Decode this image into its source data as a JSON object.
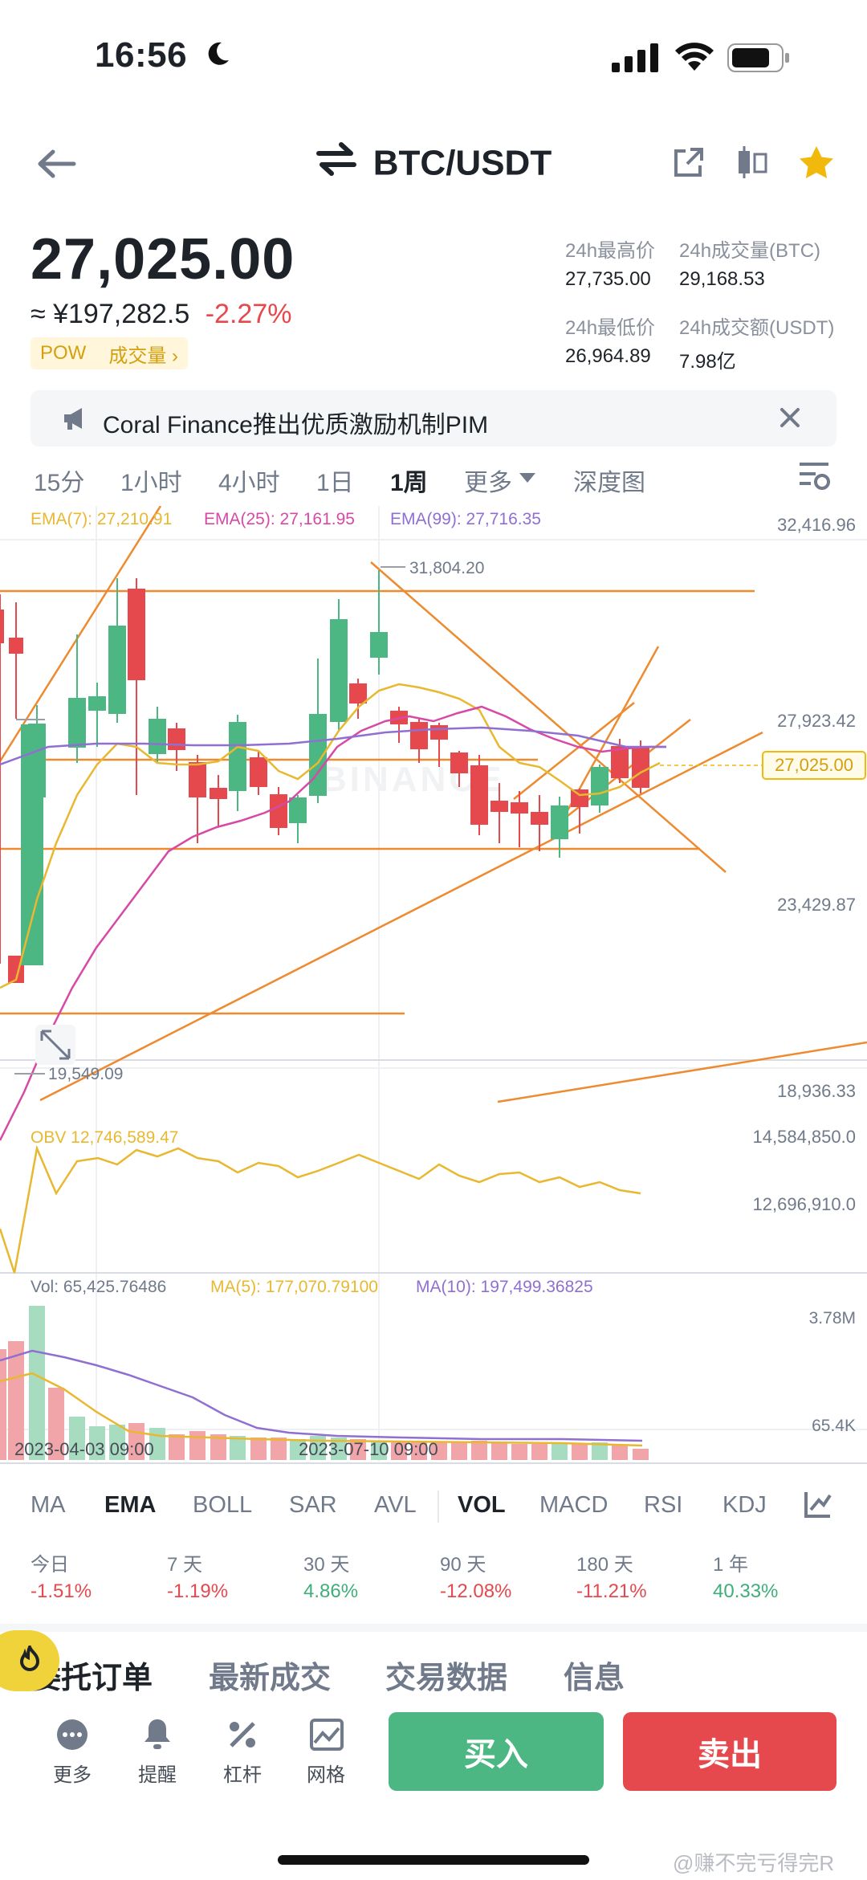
{
  "status_bar": {
    "time": "16:56"
  },
  "header": {
    "pair": "BTC/USDT"
  },
  "ticker": {
    "price": "27,025.00",
    "cny": "≈ ¥197,282.5",
    "change": "-2.27%",
    "badge_tag": "POW",
    "badge_link": "成交量 ›",
    "high_label": "24h最高价",
    "high_value": "27,735.00",
    "vol_btc_label": "24h成交量(BTC)",
    "vol_btc_value": "29,168.53",
    "low_label": "24h最低价",
    "low_value": "26,964.89",
    "vol_usdt_label": "24h成交额(USDT)",
    "vol_usdt_value": "7.98亿"
  },
  "notice": {
    "text": "Coral Finance推出优质激励机制PIM"
  },
  "timeframes": [
    "15分",
    "1小时",
    "4小时",
    "1日",
    "1周",
    "更多",
    "深度图"
  ],
  "active_timeframe": "1周",
  "main_chart": {
    "ema7_label": "EMA(7): 27,210.91",
    "ema25_label": "EMA(25): 27,161.95",
    "ema99_label": "EMA(99): 27,716.35",
    "axis": [
      "32,416.96",
      "27,923.42",
      "23,429.87",
      "18,936.33"
    ],
    "current_price": "27,025.00",
    "high_marker": "31,804.20",
    "low_marker": "19,549.09",
    "watermark": "BINANCE"
  },
  "obv": {
    "label": "OBV 12,746,589.47",
    "axis_top": "14,584,850.0",
    "axis_mid": "12,696,910.0"
  },
  "volume": {
    "vol_label": "Vol: 65,425.76486",
    "ma5_label": "MA(5): 177,070.79100",
    "ma10_label": "MA(10): 197,499.36825",
    "axis_top": "3.78M",
    "axis_bottom": "65.4K",
    "date1": "2023-04-03 09:00",
    "date2": "2023-07-10 09:00"
  },
  "indicators": [
    "MA",
    "EMA",
    "BOLL",
    "SAR",
    "AVL",
    "VOL",
    "MACD",
    "RSI",
    "KDJ"
  ],
  "performance": [
    {
      "label": "今日",
      "value": "-1.51%",
      "dir": "down"
    },
    {
      "label": "7 天",
      "value": "-1.19%",
      "dir": "down"
    },
    {
      "label": "30 天",
      "value": "4.86%",
      "dir": "up"
    },
    {
      "label": "90 天",
      "value": "-12.08%",
      "dir": "down"
    },
    {
      "label": "180 天",
      "value": "-11.21%",
      "dir": "down"
    },
    {
      "label": "1 年",
      "value": "40.33%",
      "dir": "up"
    }
  ],
  "bottom_tabs": [
    "委托订单",
    "最新成交",
    "交易数据",
    "信息"
  ],
  "bottom_nav": [
    "更多",
    "提醒",
    "杠杆",
    "网格"
  ],
  "buy_label": "买入",
  "sell_label": "卖出",
  "watermark_user": "@赚不完亏得完R",
  "colors": {
    "up": "#3fae7a",
    "down": "#e5484d",
    "accent": "#f0b90b",
    "ema7": "#e8b830",
    "ema25": "#d64aa6",
    "ema99": "#8f6fd1",
    "trend": "#ee8a2f"
  }
}
